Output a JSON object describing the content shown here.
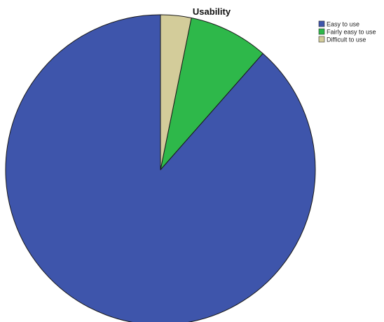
{
  "chart_data": {
    "type": "pie",
    "title": "Usability",
    "categories": [
      "Easy to use",
      "Fairly easy to use",
      "Difficult to use"
    ],
    "values": [
      88.5,
      8.3,
      3.2
    ],
    "colors": [
      "#3e55ab",
      "#2eb84a",
      "#d3cc9a"
    ],
    "legend": {
      "position": "top-right",
      "entries": [
        "Easy to use",
        "Fairly easy to use",
        "Difficult to use"
      ]
    },
    "slice_border_color": "#1a1a1a"
  }
}
